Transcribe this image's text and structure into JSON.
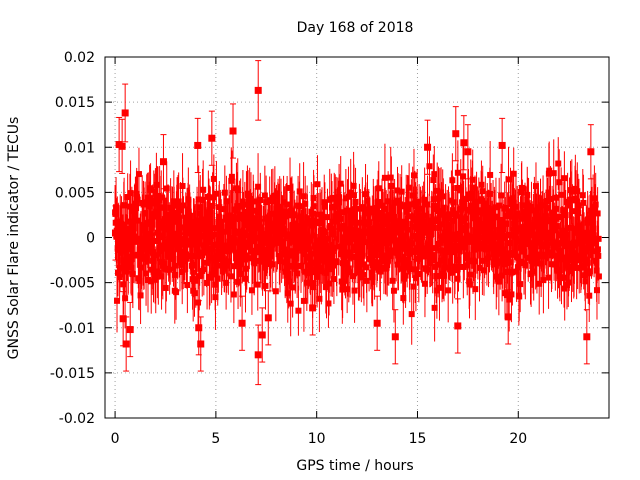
{
  "chart_data": {
    "type": "scatter",
    "title": "Day 168 of 2018",
    "xlabel": "GPS time / hours",
    "ylabel": "GNSS Solar Flare indicator / TECUs",
    "xlim": [
      -0.5,
      24.5
    ],
    "ylim": [
      -0.02,
      0.02
    ],
    "x_ticks": [
      0,
      5,
      10,
      15,
      20
    ],
    "x_tick_labels": [
      "0",
      "5",
      "10",
      "15",
      "20"
    ],
    "y_ticks": [
      -0.02,
      -0.015,
      -0.01,
      -0.005,
      0,
      0.005,
      0.01,
      0.015,
      0.02
    ],
    "y_tick_labels": [
      "-0.02",
      "-0.015",
      "-0.01",
      "-0.005",
      "0",
      "0.005",
      "0.01",
      "0.015",
      "0.02"
    ],
    "grid": true,
    "marker": "square",
    "error_bars": true,
    "colors": {
      "series": "#ff0000",
      "axes": "#000000",
      "grid": "#a0a0a0"
    },
    "series": [
      {
        "name": "solar flare indicator",
        "description": "dense noise band, roughly -0.006 to +0.006 TECU with error bars of about +/-0.003",
        "points": [
          {
            "x": 0.02,
            "y": 0.0005,
            "err": 0.003
          },
          {
            "x": 0.2,
            "y": 0.0103,
            "err": 0.003
          },
          {
            "x": 0.35,
            "y": 0.0101,
            "err": 0.003
          },
          {
            "x": 0.5,
            "y": 0.0138,
            "err": 0.0032
          },
          {
            "x": 0.4,
            "y": -0.009,
            "err": 0.003
          },
          {
            "x": 0.55,
            "y": -0.0118,
            "err": 0.003
          },
          {
            "x": 0.75,
            "y": -0.0102,
            "err": 0.003
          },
          {
            "x": 2.4,
            "y": 0.0084,
            "err": 0.003
          },
          {
            "x": 4.1,
            "y": 0.0102,
            "err": 0.003
          },
          {
            "x": 4.15,
            "y": -0.01,
            "err": 0.003
          },
          {
            "x": 4.25,
            "y": -0.0118,
            "err": 0.003
          },
          {
            "x": 4.8,
            "y": 0.011,
            "err": 0.003
          },
          {
            "x": 5.85,
            "y": 0.0118,
            "err": 0.003
          },
          {
            "x": 6.3,
            "y": -0.0095,
            "err": 0.003
          },
          {
            "x": 7.1,
            "y": 0.0163,
            "err": 0.0033
          },
          {
            "x": 7.1,
            "y": -0.013,
            "err": 0.0033
          },
          {
            "x": 7.3,
            "y": -0.0108,
            "err": 0.003
          },
          {
            "x": 7.6,
            "y": -0.0089,
            "err": 0.003
          },
          {
            "x": 9.8,
            "y": -0.0078,
            "err": 0.003
          },
          {
            "x": 13.0,
            "y": -0.0095,
            "err": 0.003
          },
          {
            "x": 13.9,
            "y": -0.011,
            "err": 0.003
          },
          {
            "x": 15.5,
            "y": 0.01,
            "err": 0.003
          },
          {
            "x": 16.9,
            "y": 0.0115,
            "err": 0.003
          },
          {
            "x": 17.0,
            "y": -0.0098,
            "err": 0.003
          },
          {
            "x": 17.3,
            "y": 0.0105,
            "err": 0.003
          },
          {
            "x": 17.5,
            "y": 0.0095,
            "err": 0.003
          },
          {
            "x": 19.2,
            "y": 0.0102,
            "err": 0.003
          },
          {
            "x": 19.5,
            "y": -0.0088,
            "err": 0.003
          },
          {
            "x": 23.4,
            "y": -0.011,
            "err": 0.003
          },
          {
            "x": 23.6,
            "y": 0.0095,
            "err": 0.003
          }
        ]
      }
    ]
  }
}
